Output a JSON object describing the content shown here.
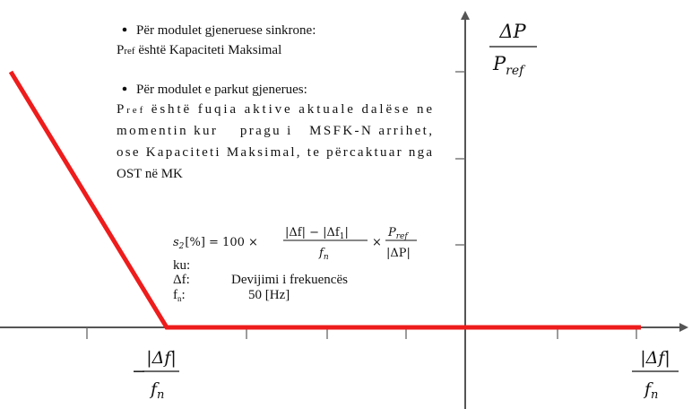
{
  "bullets": [
    {
      "title": "Për modulet gjeneruese sinkrone:",
      "lines": [
        {
          "symbol": "P",
          "sub": "ref",
          "text": " është Kapaciteti Maksimal"
        }
      ]
    },
    {
      "title": "Për modulet e parkut gjenerues:",
      "lines": [
        {
          "symbol": "P",
          "sub": "ref",
          "text": " është fuqia aktive  aktuale dalëse ne"
        },
        {
          "text": "momentin kur    pragu i   MSFK-N arrihet,"
        },
        {
          "text": "ose Kapaciteti Maksimal, te përcaktuar nga"
        },
        {
          "text": "OST në MK"
        }
      ]
    }
  ],
  "formula": {
    "lhs": "s",
    "lhs_sub": "2",
    "lhs_rest": "[%] = 100 ×",
    "num": "|Δf| − |Δf",
    "num_sub": "1",
    "num_end": "|",
    "den": "f",
    "den_sub": "n",
    "times": "×",
    "p": "P",
    "p_sub": "ref",
    "dp": "|ΔP|"
  },
  "legend": {
    "intro": "ku:",
    "rows": [
      {
        "symbol": "Δf",
        "sub": "",
        "colon": ":",
        "text": "Devijimi i frekuencës"
      },
      {
        "symbol": "f",
        "sub": "n",
        "colon": ":",
        "text": "50 [Hz]"
      }
    ]
  },
  "axes": {
    "y_label": {
      "num": "ΔP",
      "den": "P",
      "den_sub": "ref"
    },
    "x_neg_label": {
      "sign": "−",
      "num": "|Δf|",
      "den": "f",
      "den_sub": "n"
    },
    "x_pos_label": {
      "num": "|Δf|",
      "den": "f",
      "den_sub": "n"
    }
  }
}
